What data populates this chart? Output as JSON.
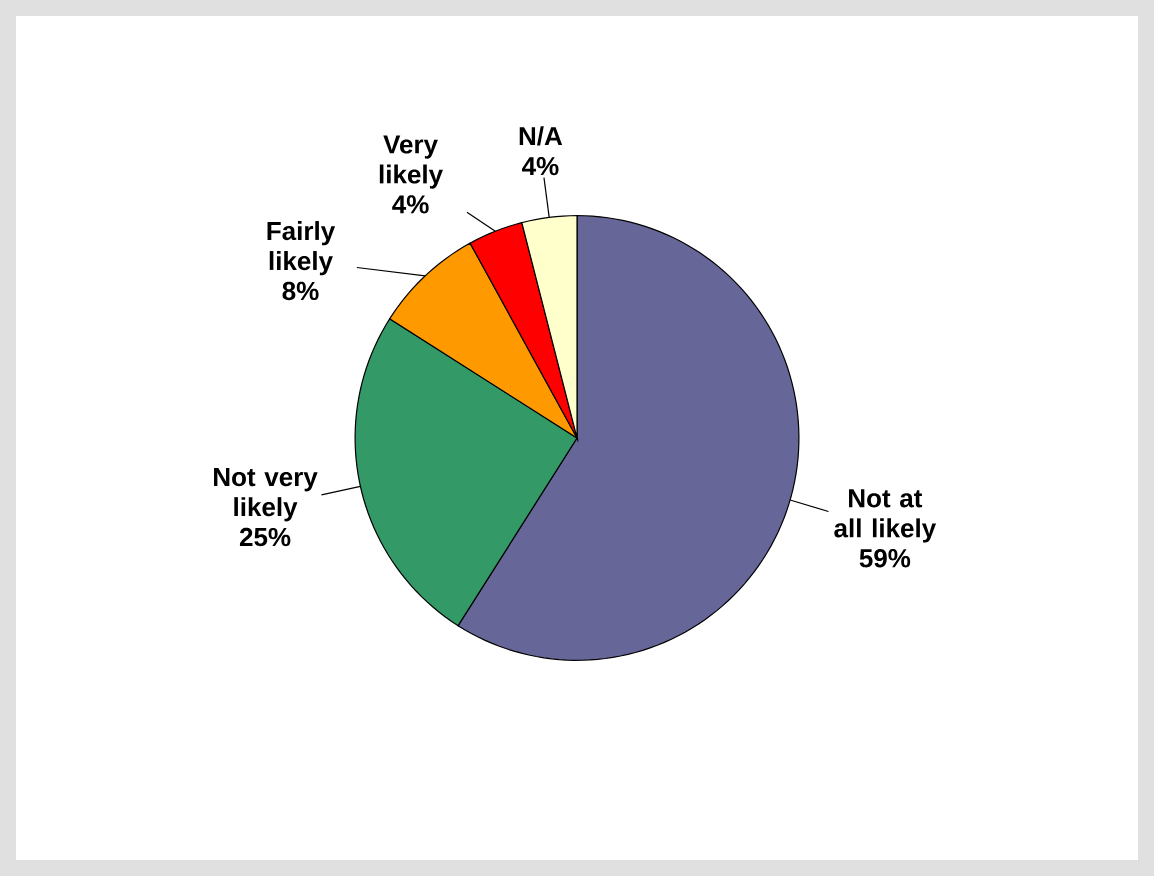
{
  "chart_data": {
    "type": "pie",
    "categories": [
      "Not at all likely",
      "Not very likely",
      "Fairly likely",
      "Very likely",
      "N/A"
    ],
    "values": [
      59,
      25,
      8,
      4,
      4
    ],
    "value_labels": [
      "59%",
      "25%",
      "8%",
      "4%",
      "4%"
    ],
    "colors": [
      "#666699",
      "#339966",
      "#ff9900",
      "#ff0000",
      "#ffffcc"
    ]
  }
}
